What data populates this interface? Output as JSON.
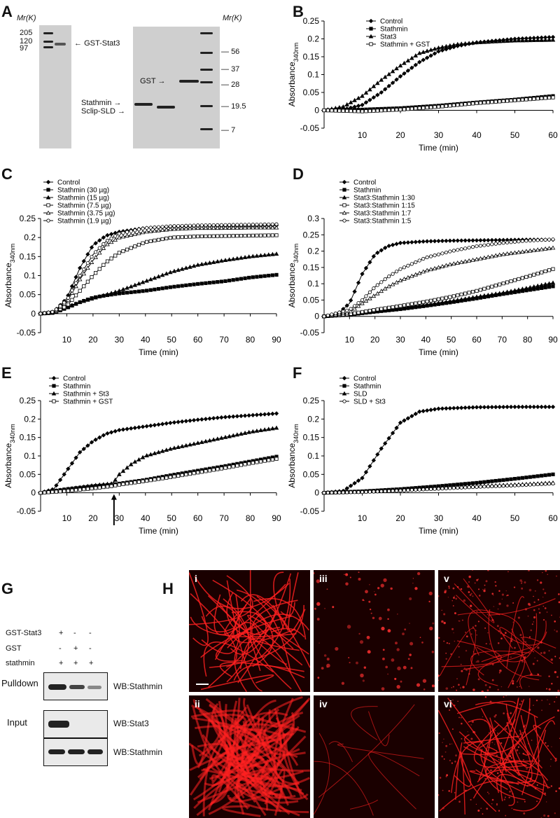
{
  "panels": {
    "A": "A",
    "B": "B",
    "C": "C",
    "D": "D",
    "E": "E",
    "F": "F",
    "G": "G",
    "H": "H"
  },
  "gel": {
    "mr_label": "Mr(K)",
    "left_markers": [
      "205",
      "120",
      "97"
    ],
    "left_band_label": "GST-Stat3",
    "right_markers": [
      "56",
      "37",
      "28",
      "19.5",
      "7"
    ],
    "right_band_labels": [
      "GST",
      "Stathmin",
      "Sclip-SLD"
    ]
  },
  "blot": {
    "row_labels": [
      "GST-Stat3",
      "GST",
      "stathmin"
    ],
    "signs": [
      [
        "+",
        "-",
        "-"
      ],
      [
        "-",
        "+",
        "-"
      ],
      [
        "+",
        "+",
        "+"
      ]
    ],
    "pulldown_label": "Pulldown",
    "input_label": "Input",
    "wb": [
      "WB:Stathmin",
      "WB:Stat3",
      "WB:Stathmin"
    ]
  },
  "micro": {
    "labels": [
      "i",
      "iii",
      "v",
      "ii",
      "iv",
      "vi"
    ]
  },
  "chart_data": [
    {
      "id": "B",
      "type": "line",
      "xlabel": "Time (min)",
      "ylabel": "Absorbance340nm",
      "xlim": [
        0,
        60
      ],
      "ylim": [
        -0.05,
        0.25
      ],
      "xticks": [
        10,
        20,
        30,
        40,
        50,
        60
      ],
      "yticks": [
        -0.05,
        0,
        0.05,
        0.1,
        0.15,
        0.2,
        0.25
      ],
      "series": [
        {
          "name": "Control",
          "marker": "diamond",
          "x": [
            0,
            5,
            10,
            15,
            20,
            25,
            30,
            35,
            40,
            50,
            60
          ],
          "y": [
            0,
            0.002,
            0.015,
            0.05,
            0.095,
            0.135,
            0.165,
            0.18,
            0.19,
            0.2,
            0.205
          ]
        },
        {
          "name": "Stathmin",
          "marker": "square",
          "x": [
            0,
            10,
            20,
            30,
            40,
            50,
            60
          ],
          "y": [
            0,
            0.002,
            0.006,
            0.013,
            0.022,
            0.03,
            0.04
          ]
        },
        {
          "name": "Stat3",
          "marker": "triangle",
          "x": [
            0,
            5,
            10,
            15,
            20,
            25,
            30,
            35,
            40,
            50,
            60
          ],
          "y": [
            0,
            0.01,
            0.04,
            0.085,
            0.125,
            0.16,
            0.175,
            0.185,
            0.19,
            0.195,
            0.197
          ]
        },
        {
          "name": "Stathmin + GST",
          "marker": "open-square",
          "x": [
            0,
            10,
            20,
            30,
            40,
            50,
            60
          ],
          "y": [
            0,
            -0.003,
            0.002,
            0.01,
            0.02,
            0.028,
            0.036
          ]
        }
      ]
    },
    {
      "id": "C",
      "type": "line",
      "xlabel": "Time (min)",
      "ylabel": "Absorbance340nm",
      "xlim": [
        0,
        90
      ],
      "ylim": [
        -0.05,
        0.25
      ],
      "xticks": [
        10,
        20,
        30,
        40,
        50,
        60,
        70,
        80,
        90
      ],
      "yticks": [
        -0.05,
        0,
        0.05,
        0.1,
        0.15,
        0.2,
        0.25
      ],
      "series": [
        {
          "name": "Control",
          "marker": "diamond",
          "x": [
            0,
            5,
            10,
            15,
            20,
            25,
            30,
            40,
            50,
            60,
            70,
            80,
            90
          ],
          "y": [
            0,
            0.005,
            0.04,
            0.12,
            0.18,
            0.205,
            0.215,
            0.225,
            0.228,
            0.23,
            0.23,
            0.23,
            0.232
          ]
        },
        {
          "name": "Stathmin (30 µg)",
          "marker": "square",
          "x": [
            0,
            5,
            10,
            15,
            20,
            25,
            30,
            40,
            50,
            60,
            70,
            80,
            90
          ],
          "y": [
            0,
            0.002,
            0.015,
            0.03,
            0.042,
            0.048,
            0.053,
            0.06,
            0.07,
            0.078,
            0.085,
            0.095,
            0.102
          ]
        },
        {
          "name": "Stathmin (15 µg)",
          "marker": "triangle",
          "x": [
            0,
            5,
            10,
            15,
            20,
            25,
            30,
            40,
            50,
            60,
            70,
            80,
            90
          ],
          "y": [
            0,
            0.003,
            0.017,
            0.03,
            0.04,
            0.05,
            0.06,
            0.085,
            0.11,
            0.128,
            0.14,
            0.15,
            0.157
          ]
        },
        {
          "name": "Stathmin (7.5 µg)",
          "marker": "open-square",
          "x": [
            0,
            5,
            10,
            15,
            20,
            25,
            30,
            40,
            50,
            60,
            70,
            80,
            90
          ],
          "y": [
            0,
            0.004,
            0.02,
            0.06,
            0.1,
            0.135,
            0.16,
            0.188,
            0.2,
            0.203,
            0.204,
            0.205,
            0.206
          ]
        },
        {
          "name": "Stathmin (3.75 µg)",
          "marker": "open-triangle",
          "x": [
            0,
            5,
            10,
            15,
            20,
            25,
            30,
            40,
            50,
            60,
            70,
            80,
            90
          ],
          "y": [
            0,
            0.005,
            0.03,
            0.09,
            0.14,
            0.18,
            0.2,
            0.215,
            0.222,
            0.225,
            0.225,
            0.226,
            0.226
          ]
        },
        {
          "name": "Stathmin (1.9 µg)",
          "marker": "open-circle",
          "x": [
            0,
            5,
            10,
            15,
            20,
            25,
            30,
            40,
            50,
            60,
            70,
            80,
            90
          ],
          "y": [
            0,
            0.005,
            0.035,
            0.1,
            0.155,
            0.19,
            0.21,
            0.225,
            0.23,
            0.232,
            0.233,
            0.234,
            0.235
          ]
        }
      ]
    },
    {
      "id": "D",
      "type": "line",
      "xlabel": "Time (min)",
      "ylabel": "Absorbance340nm",
      "xlim": [
        0,
        90
      ],
      "ylim": [
        -0.05,
        0.3
      ],
      "xticks": [
        10,
        20,
        30,
        40,
        50,
        60,
        70,
        80,
        90
      ],
      "yticks": [
        -0.05,
        0,
        0.05,
        0.1,
        0.15,
        0.2,
        0.25,
        0.3
      ],
      "series": [
        {
          "name": "Control",
          "marker": "diamond",
          "x": [
            0,
            5,
            10,
            15,
            20,
            25,
            30,
            40,
            50,
            60,
            70,
            80,
            90
          ],
          "y": [
            0,
            0.005,
            0.04,
            0.13,
            0.19,
            0.215,
            0.225,
            0.23,
            0.232,
            0.233,
            0.234,
            0.235,
            0.235
          ]
        },
        {
          "name": "Stathmin",
          "marker": "square",
          "x": [
            0,
            10,
            20,
            30,
            40,
            50,
            60,
            70,
            80,
            90
          ],
          "y": [
            0,
            0.005,
            0.014,
            0.022,
            0.032,
            0.043,
            0.055,
            0.068,
            0.08,
            0.092
          ]
        },
        {
          "name": "Stat3:Stathmin 1:30",
          "marker": "triangle",
          "x": [
            0,
            10,
            20,
            30,
            40,
            50,
            60,
            70,
            80,
            90
          ],
          "y": [
            0,
            0.006,
            0.016,
            0.025,
            0.035,
            0.047,
            0.06,
            0.072,
            0.087,
            0.103
          ]
        },
        {
          "name": "Stat3:Stathmin 1:15",
          "marker": "open-square",
          "x": [
            0,
            10,
            20,
            30,
            40,
            50,
            60,
            70,
            80,
            90
          ],
          "y": [
            0,
            0.007,
            0.02,
            0.032,
            0.045,
            0.06,
            0.078,
            0.1,
            0.122,
            0.145
          ]
        },
        {
          "name": "Stat3:Stathmin 1:7",
          "marker": "open-triangle",
          "x": [
            0,
            10,
            15,
            20,
            25,
            30,
            40,
            50,
            60,
            70,
            80,
            90
          ],
          "y": [
            0,
            0.012,
            0.04,
            0.065,
            0.09,
            0.11,
            0.14,
            0.16,
            0.175,
            0.19,
            0.2,
            0.21
          ]
        },
        {
          "name": "Stat3:Stathmin 1:5",
          "marker": "open-circle",
          "x": [
            0,
            10,
            15,
            20,
            25,
            30,
            40,
            50,
            60,
            70,
            80,
            90
          ],
          "y": [
            0,
            0.02,
            0.05,
            0.09,
            0.12,
            0.145,
            0.18,
            0.2,
            0.215,
            0.225,
            0.232,
            0.236
          ]
        }
      ]
    },
    {
      "id": "E",
      "type": "line",
      "xlabel": "Time (min)",
      "ylabel": "Absorbance340nm",
      "xlim": [
        0,
        90
      ],
      "ylim": [
        -0.05,
        0.25
      ],
      "xticks": [
        10,
        20,
        30,
        40,
        50,
        60,
        70,
        80,
        90
      ],
      "yticks": [
        -0.05,
        0,
        0.05,
        0.1,
        0.15,
        0.2,
        0.25
      ],
      "arrow_x": 28,
      "series": [
        {
          "name": "Control",
          "marker": "diamond",
          "x": [
            0,
            5,
            10,
            15,
            20,
            25,
            30,
            40,
            50,
            60,
            70,
            80,
            90
          ],
          "y": [
            0,
            0.01,
            0.06,
            0.11,
            0.14,
            0.16,
            0.17,
            0.18,
            0.19,
            0.198,
            0.205,
            0.21,
            0.215
          ]
        },
        {
          "name": "Stathmin",
          "marker": "square",
          "x": [
            0,
            10,
            20,
            27,
            30,
            40,
            50,
            60,
            70,
            80,
            90
          ],
          "y": [
            0,
            0.01,
            0.018,
            0.022,
            0.025,
            0.035,
            0.048,
            0.06,
            0.072,
            0.085,
            0.098
          ]
        },
        {
          "name": "Stathmin + St3",
          "marker": "triangle",
          "x": [
            0,
            10,
            20,
            27,
            28,
            30,
            35,
            40,
            50,
            60,
            70,
            80,
            90
          ],
          "y": [
            0,
            0.01,
            0.02,
            0.025,
            0.03,
            0.05,
            0.08,
            0.1,
            0.12,
            0.135,
            0.15,
            0.165,
            0.176
          ]
        },
        {
          "name": "Stathmin + GST",
          "marker": "open-square",
          "x": [
            0,
            10,
            20,
            27,
            30,
            40,
            50,
            60,
            70,
            80,
            90
          ],
          "y": [
            0,
            0.005,
            0.012,
            0.018,
            0.022,
            0.032,
            0.043,
            0.055,
            0.067,
            0.08,
            0.092
          ]
        }
      ]
    },
    {
      "id": "F",
      "type": "line",
      "xlabel": "Time (min)",
      "ylabel": "Absorbance340nm",
      "xlim": [
        0,
        60
      ],
      "ylim": [
        -0.05,
        0.25
      ],
      "xticks": [
        10,
        20,
        30,
        40,
        50,
        60
      ],
      "yticks": [
        -0.05,
        0,
        0.05,
        0.1,
        0.15,
        0.2,
        0.25
      ],
      "series": [
        {
          "name": "Control",
          "marker": "diamond",
          "x": [
            0,
            5,
            10,
            15,
            20,
            25,
            30,
            40,
            50,
            60
          ],
          "y": [
            0,
            0.005,
            0.04,
            0.12,
            0.19,
            0.22,
            0.228,
            0.232,
            0.233,
            0.233
          ]
        },
        {
          "name": "Stathmin",
          "marker": "square",
          "x": [
            0,
            10,
            20,
            30,
            40,
            50,
            60
          ],
          "y": [
            0,
            0.004,
            0.01,
            0.018,
            0.027,
            0.038,
            0.05
          ]
        },
        {
          "name": "SLD",
          "marker": "triangle",
          "x": [
            0,
            10,
            20,
            30,
            40,
            50,
            60
          ],
          "y": [
            0,
            0.003,
            0.008,
            0.013,
            0.018,
            0.022,
            0.027
          ]
        },
        {
          "name": "SLD + St3",
          "marker": "open-circle",
          "x": [
            0,
            10,
            20,
            30,
            40,
            50,
            60
          ],
          "y": [
            0,
            0.002,
            0.006,
            0.011,
            0.016,
            0.02,
            0.025
          ]
        }
      ]
    }
  ]
}
